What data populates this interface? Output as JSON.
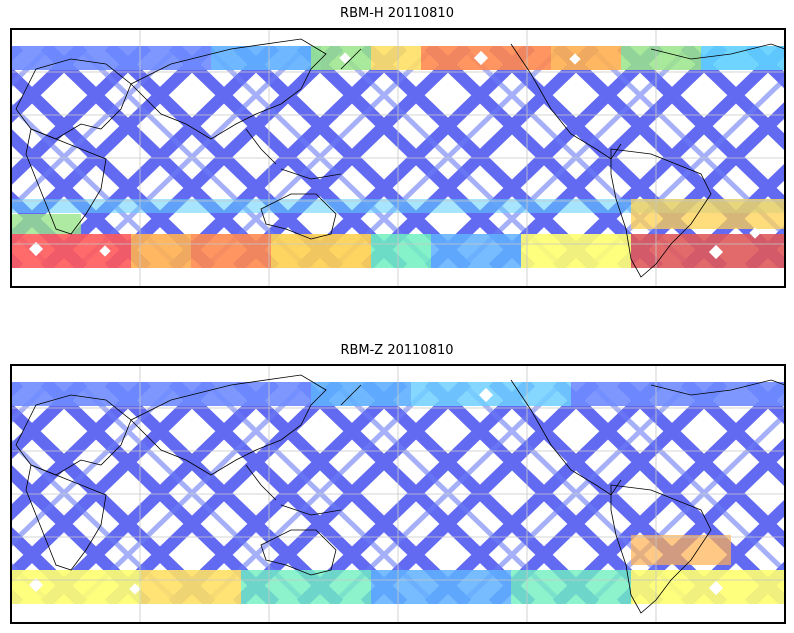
{
  "maps": [
    {
      "title": "RBM-H 20110810",
      "band_colors": {
        "north_edge": [
          "#6f8cff",
          "#5fb0ff",
          "#ffe066",
          "#ff8a50",
          "#ff6a50",
          "#5fd0ff"
        ],
        "south_edge": [
          "#ff5a5a",
          "#ff8a50",
          "#ffd050",
          "#ffff70",
          "#70f0c0",
          "#e05a5a"
        ]
      }
    },
    {
      "title": "RBM-Z 20110810",
      "band_colors": {
        "north_edge": [
          "#6f8cff",
          "#5fb0ff",
          "#70d0ff",
          "#6f8cff"
        ],
        "south_edge": [
          "#ffff70",
          "#70f0c0",
          "#ffd050",
          "#5fd0ff"
        ]
      }
    }
  ],
  "colors": {
    "track_base": "#5a62f0",
    "coastline": "#000000",
    "graticule": "#c8c8c8",
    "frame": "#000000"
  }
}
